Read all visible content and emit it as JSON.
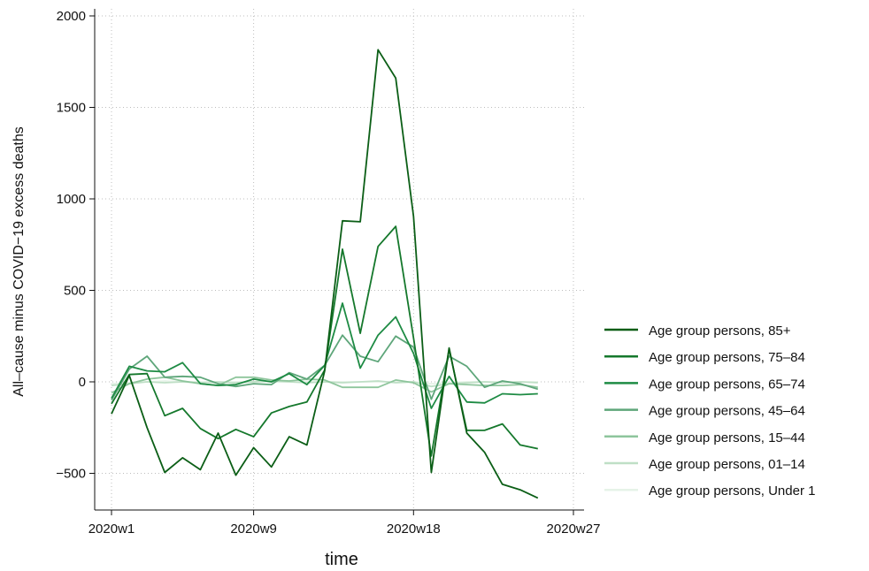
{
  "chart_data": {
    "type": "line",
    "x_unit": "week of 2020",
    "x_tick_labels": [
      "2020w1",
      "2020w9",
      "2020w18",
      "2020w27"
    ],
    "x_tick_weeks": [
      1,
      9,
      18,
      27
    ],
    "xlim": [
      1,
      27
    ],
    "ylim": [
      -700,
      2000
    ],
    "y_ticks": [
      -500,
      0,
      500,
      1000,
      1500,
      2000
    ],
    "y_tick_labels": [
      "−500",
      "0",
      "500",
      "1000",
      "1500",
      "2000"
    ],
    "xlabel": "time",
    "ylabel": "All–cause minus COVID−19 excess deaths",
    "grid": true,
    "legend_position": "right",
    "x": [
      1,
      2,
      3,
      4,
      5,
      6,
      7,
      8,
      9,
      10,
      11,
      12,
      13,
      14,
      15,
      16,
      17,
      18,
      19,
      20,
      21,
      22,
      23,
      24,
      25,
      26
    ],
    "series": [
      {
        "name": "Age group persons, 85+",
        "color": "#0b5e16",
        "values": [
          -175,
          35,
          -250,
          -495,
          -415,
          -480,
          -280,
          -510,
          -360,
          -465,
          -300,
          -345,
          60,
          880,
          875,
          1815,
          1660,
          905,
          -495,
          185,
          -280,
          -385,
          -560,
          -590,
          -635,
          null
        ]
      },
      {
        "name": "Age group persons, 75–84",
        "color": "#15782c",
        "values": [
          -120,
          40,
          45,
          -185,
          -145,
          -255,
          -310,
          -260,
          -300,
          -170,
          -135,
          -110,
          65,
          725,
          265,
          740,
          850,
          240,
          -405,
          180,
          -265,
          -265,
          -230,
          -345,
          -365,
          null
        ]
      },
      {
        "name": "Age group persons, 65–74",
        "color": "#1e8b44",
        "values": [
          -90,
          85,
          60,
          55,
          105,
          -10,
          -20,
          -15,
          15,
          0,
          45,
          -15,
          90,
          430,
          75,
          255,
          355,
          155,
          -145,
          30,
          -110,
          -115,
          -65,
          -70,
          -65,
          null
        ]
      },
      {
        "name": "Age group persons, 45–64",
        "color": "#5ea67a",
        "values": [
          -100,
          70,
          140,
          25,
          30,
          25,
          -10,
          -25,
          -10,
          -15,
          50,
          15,
          90,
          255,
          140,
          110,
          250,
          190,
          -95,
          140,
          85,
          -30,
          5,
          -10,
          -40,
          null
        ]
      },
      {
        "name": "Age group persons, 15–44",
        "color": "#8ec59c",
        "values": [
          -60,
          -10,
          15,
          25,
          5,
          -10,
          -20,
          25,
          25,
          10,
          5,
          15,
          10,
          -30,
          -30,
          -30,
          10,
          -5,
          -55,
          -10,
          -15,
          -20,
          -20,
          -15,
          -30,
          null
        ]
      },
      {
        "name": "Age group persons, 01–14",
        "color": "#bfdfc6",
        "values": [
          -20,
          -10,
          0,
          -5,
          0,
          -5,
          0,
          -5,
          0,
          5,
          0,
          -5,
          0,
          -5,
          0,
          5,
          -5,
          0,
          -25,
          -10,
          -5,
          0,
          -5,
          0,
          -5,
          null
        ]
      },
      {
        "name": "Age group persons, Under 1",
        "color": "#e6f3e8",
        "values": [
          -10,
          -5,
          0,
          5,
          0,
          0,
          -5,
          0,
          0,
          0,
          0,
          5,
          0,
          0,
          0,
          0,
          0,
          0,
          -10,
          -5,
          0,
          0,
          0,
          0,
          0,
          null
        ]
      }
    ]
  }
}
